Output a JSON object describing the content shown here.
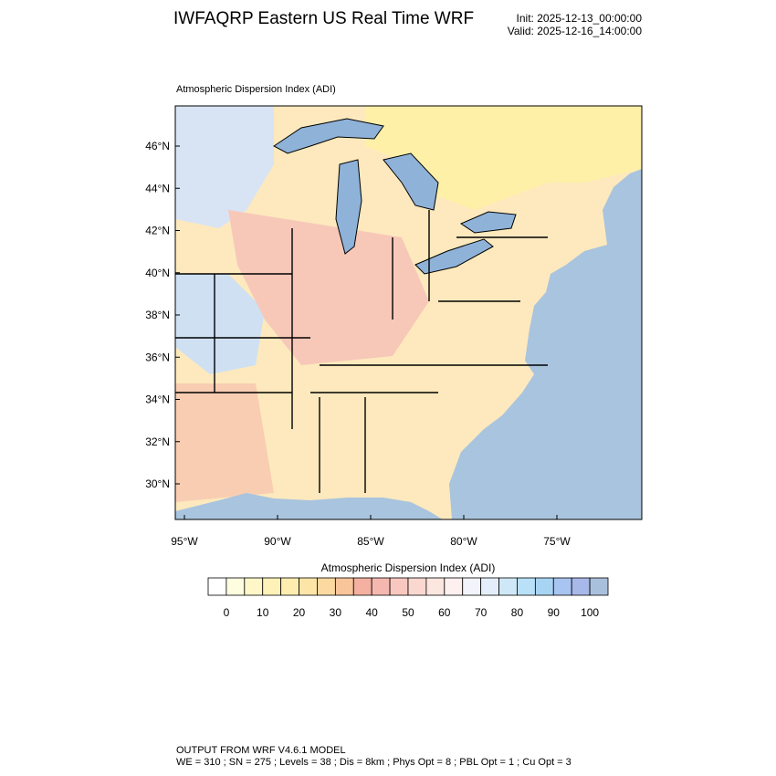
{
  "header": {
    "title": "IWFAQRP Eastern US Real Time WRF",
    "init": "Init: 2025-12-13_00:00:00",
    "valid": "Valid: 2025-12-16_14:00:00"
  },
  "map": {
    "subtitle": "Atmospheric Dispersion Index   (ADI)",
    "lat_labels": [
      "46°N",
      "44°N",
      "42°N",
      "40°N",
      "38°N",
      "36°N",
      "34°N",
      "32°N",
      "30°N"
    ],
    "lon_labels": [
      "95°W",
      "90°W",
      "85°W",
      "80°W",
      "75°W"
    ]
  },
  "colorbar": {
    "title": "Atmospheric Dispersion Index (ADI)",
    "ticks": [
      0,
      10,
      20,
      30,
      40,
      50,
      60,
      70,
      80,
      90,
      100
    ],
    "colors": [
      "#ffffff",
      "#fffde0",
      "#fff7c8",
      "#fff2b8",
      "#ffedb0",
      "#fde5a8",
      "#fcd9a0",
      "#f8c49a",
      "#f4b0a0",
      "#f5b8b0",
      "#f8c8c0",
      "#fad8d0",
      "#fce6e0",
      "#fdf0ee",
      "#f3f4fb",
      "#e4eefa",
      "#cfe8f8",
      "#b8e0f8",
      "#a8d4f4",
      "#a8c4f0",
      "#a8b8e8",
      "#a8c0dc"
    ]
  },
  "footer": {
    "line1": "OUTPUT FROM WRF V4.6.1 MODEL",
    "line2": "WE = 310 ; SN = 275 ; Levels = 38 ; Dis = 8km ; Phys Opt = 8 ; PBL Opt = 1 ; Cu Opt = 3"
  }
}
